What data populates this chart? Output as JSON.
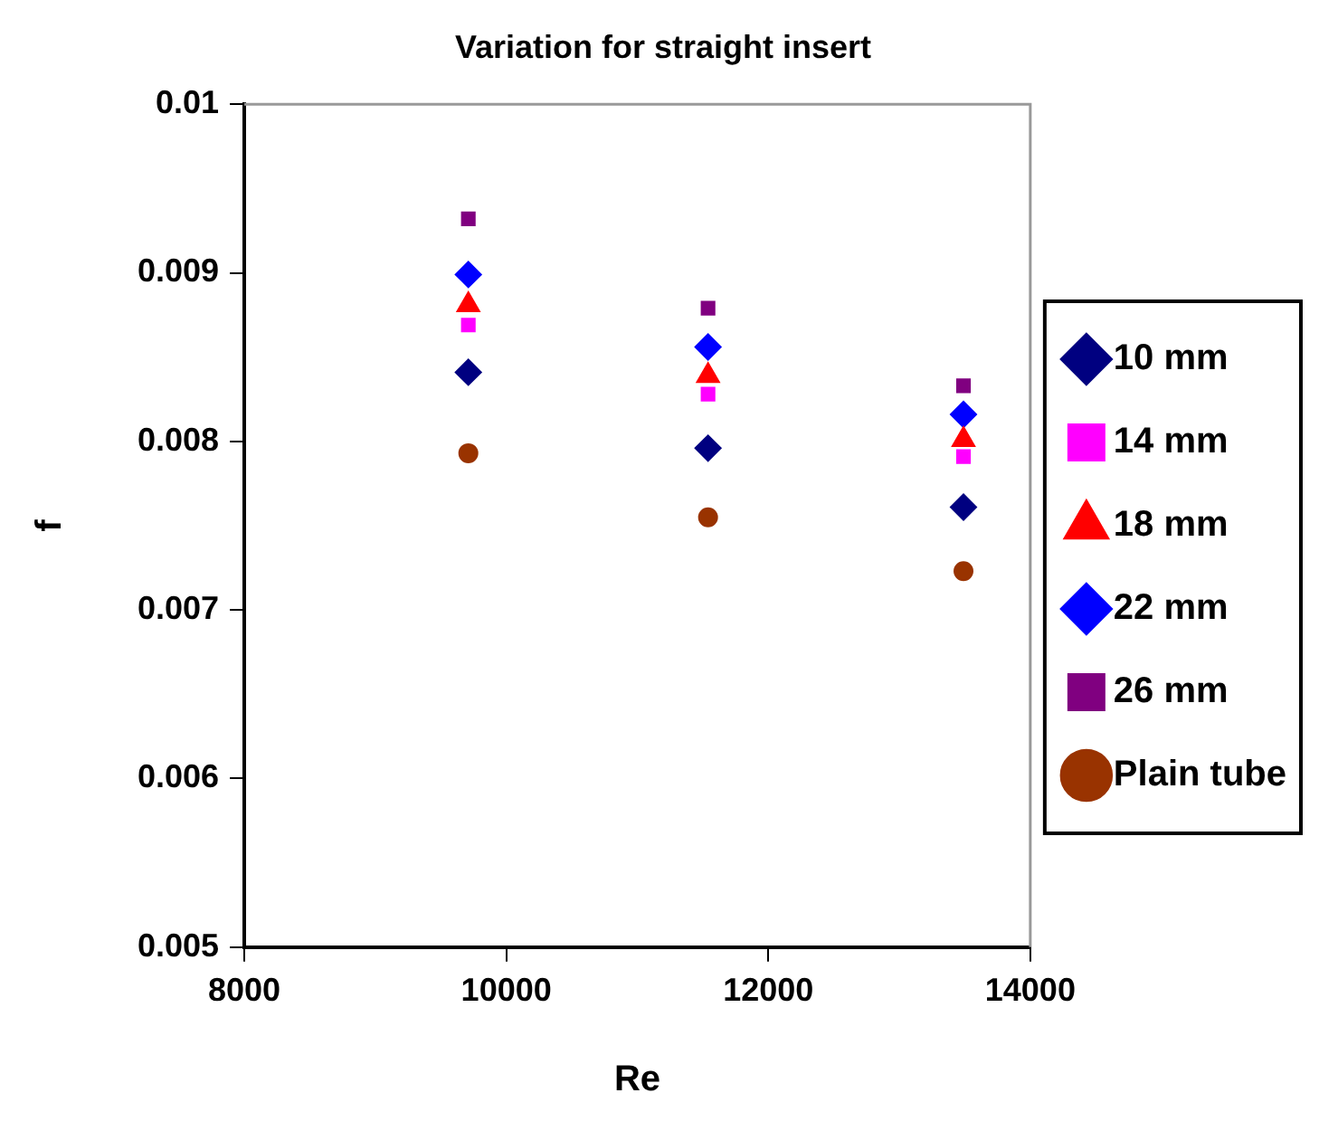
{
  "chart_data": {
    "type": "scatter",
    "title": "Variation for straight insert",
    "xlabel": "Re",
    "ylabel": "f",
    "xlim": [
      8000,
      14000
    ],
    "xticks": [
      8000,
      10000,
      12000,
      14000
    ],
    "ylim": [
      0.005,
      0.01
    ],
    "yticks": [
      0.005,
      0.006,
      0.007,
      0.008,
      0.009,
      0.01
    ],
    "grid": false,
    "legend": "right",
    "series": [
      {
        "name": "10 mm",
        "color": "#000080",
        "marker": "diamond",
        "x": [
          9710,
          11540,
          13490
        ],
        "values": [
          0.00841,
          0.00796,
          0.00761
        ]
      },
      {
        "name": "14 mm",
        "color": "#ff00ff",
        "marker": "square",
        "x": [
          9710,
          11540,
          13490
        ],
        "values": [
          0.00869,
          0.00828,
          0.00791
        ]
      },
      {
        "name": "18 mm",
        "color": "#ff0000",
        "marker": "triangle",
        "x": [
          9710,
          11540,
          13490
        ],
        "values": [
          0.00881,
          0.00839,
          0.00801
        ]
      },
      {
        "name": "22 mm",
        "color": "#0000ff",
        "marker": "diamond",
        "x": [
          9710,
          11540,
          13490
        ],
        "values": [
          0.00899,
          0.00856,
          0.00816
        ]
      },
      {
        "name": "26 mm",
        "color": "#800080",
        "marker": "square",
        "x": [
          9710,
          11540,
          13490
        ],
        "values": [
          0.00932,
          0.00879,
          0.00833
        ]
      },
      {
        "name": "Plain tube",
        "color": "#993300",
        "marker": "circle",
        "x": [
          9710,
          11540,
          13490
        ],
        "values": [
          0.00793,
          0.00755,
          0.00723
        ]
      }
    ]
  }
}
